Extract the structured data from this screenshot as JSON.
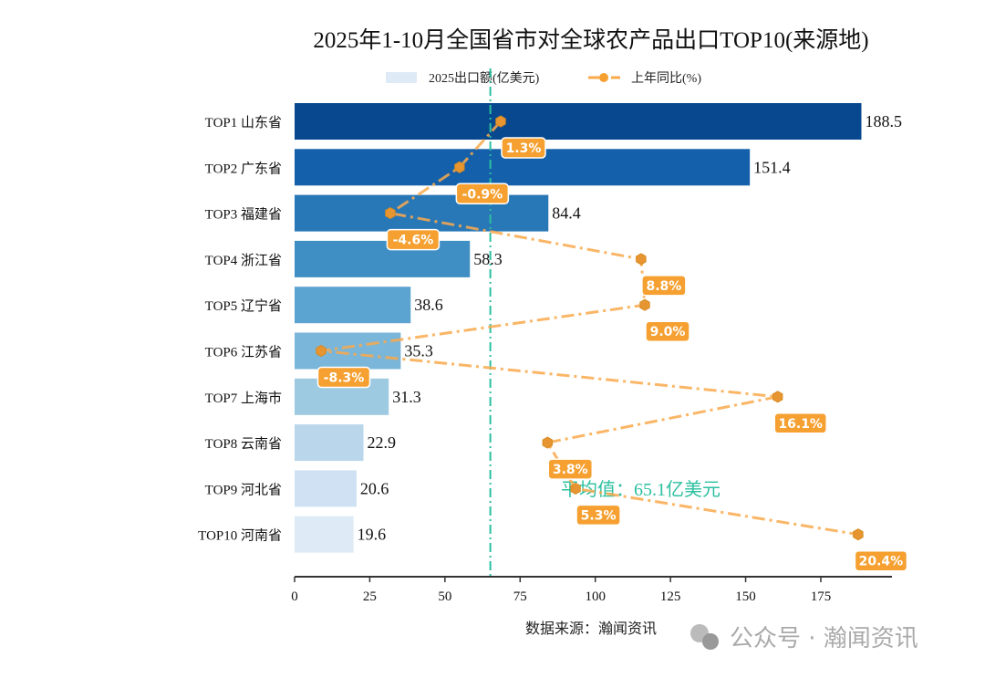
{
  "chart_data": {
    "type": "bar",
    "orientation": "horizontal",
    "title": "2025年1-10月全国省市对全球农产品出口TOP10(来源地)",
    "categories": [
      "TOP1 山东省",
      "TOP2 广东省",
      "TOP3 福建省",
      "TOP4 浙江省",
      "TOP5 辽宁省",
      "TOP6 江苏省",
      "TOP7 上海市",
      "TOP8 云南省",
      "TOP9 河北省",
      "TOP10 河南省"
    ],
    "series": [
      {
        "name": "2025出口额(亿美元)",
        "type": "bar",
        "values": [
          188.5,
          151.4,
          84.4,
          58.3,
          38.6,
          35.3,
          31.3,
          22.9,
          20.6,
          19.6
        ],
        "value_labels": [
          "188.5",
          "151.4",
          "84.4",
          "58.3",
          "38.6",
          "35.3",
          "31.3",
          "22.9",
          "20.6",
          "19.6"
        ]
      },
      {
        "name": "上年同比(%)",
        "type": "line",
        "values": [
          1.3,
          -0.9,
          -4.6,
          8.8,
          9.0,
          -8.3,
          16.1,
          3.8,
          5.3,
          20.4
        ],
        "value_labels": [
          "1.3%",
          "-0.9%",
          "-4.6%",
          "8.8%",
          "9.0%",
          "-8.3%",
          "16.1%",
          "3.8%",
          "5.3%",
          "20.4%"
        ]
      }
    ],
    "xlim": [
      0,
      205
    ],
    "xticks": [
      "0",
      "25",
      "50",
      "75",
      "100",
      "125",
      "150",
      "175"
    ],
    "average": {
      "value": 65.1,
      "label": "平均值：65.1亿美元"
    },
    "xlabel": "数据来源：瀚闻资讯",
    "legend": {
      "position": "top-center",
      "items": [
        "2025出口额(亿美元)",
        "上年同比(%)"
      ]
    },
    "grid": false,
    "colors": {
      "bars": [
        "#08488e",
        "#1460aa",
        "#2878b8",
        "#3f8fc5",
        "#5ba3d0",
        "#7ab6d9",
        "#9ecae1",
        "#bad6eb",
        "#cfe1f2",
        "#deebf7"
      ],
      "line": "#f9a94b",
      "marker": "#e69530",
      "label_box": "#f5a030",
      "average": "#2bbf9f"
    }
  },
  "watermark": "公众号 · 瀚闻资讯"
}
